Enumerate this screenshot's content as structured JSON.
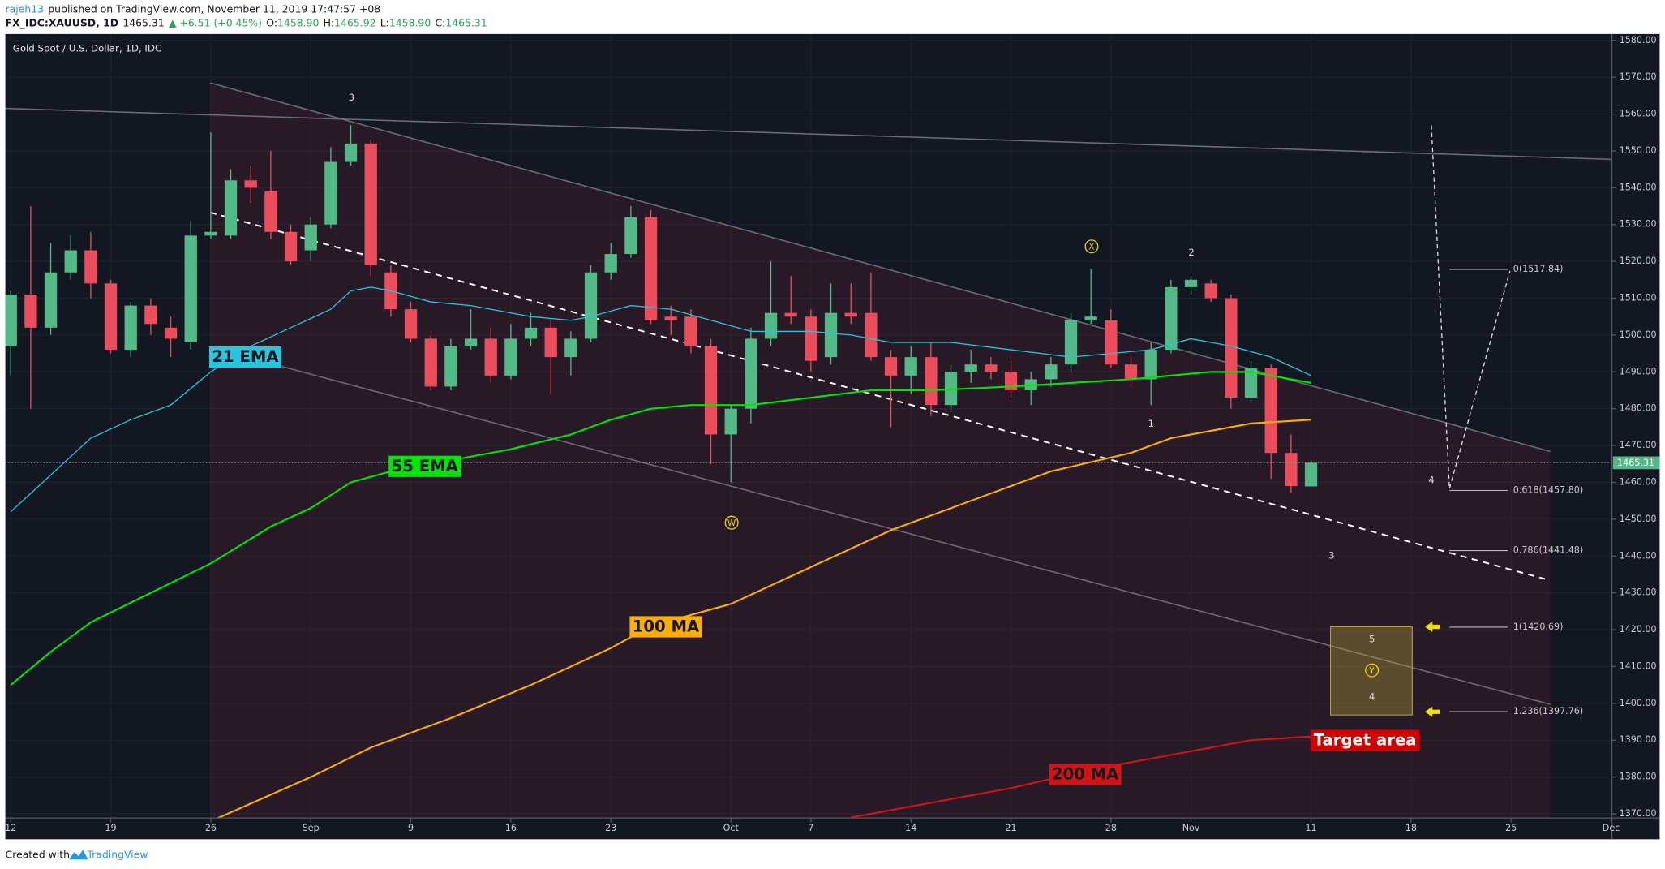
{
  "header": {
    "author": "rajeh13",
    "published": "published on TradingView.com, November 11, 2019 17:47:57 +08",
    "symbol": "FX_IDC:XAUUSD, 1D",
    "last": "1465.31",
    "change": "▲ +6.51 (+0.45%)",
    "ohlc": [
      {
        "key": "O:",
        "value": "1458.90"
      },
      {
        "key": "H:",
        "value": "1465.92"
      },
      {
        "key": "L:",
        "value": "1458.90"
      },
      {
        "key": "C:",
        "value": "1465.31"
      }
    ]
  },
  "footer": {
    "created": "Created with",
    "brand": "TradingView"
  },
  "chart_data": {
    "type": "candlestick",
    "title": "Gold Spot / U.S. Dollar, 1D, IDC",
    "up_color": "#53b987",
    "down_color": "#eb4d5c",
    "x": [
      0,
      1,
      2,
      3,
      4,
      5,
      6,
      7,
      8,
      9,
      10,
      11,
      12,
      13,
      14,
      15,
      16,
      17,
      18,
      19,
      20,
      21,
      22,
      23,
      24,
      25,
      26,
      27,
      28,
      29,
      30,
      31,
      32,
      33,
      34,
      35,
      36,
      37,
      38,
      39,
      40,
      41,
      42,
      43,
      44,
      45,
      46,
      47,
      48,
      49,
      50,
      51,
      52,
      53,
      54,
      55,
      56,
      57,
      58,
      59,
      60,
      61,
      62,
      63,
      64,
      65
    ],
    "open": [
      1497,
      1511,
      1502,
      1517,
      1523,
      1514,
      1496,
      1508,
      1502,
      1498,
      1527,
      1527,
      1542,
      1539,
      1528,
      1523,
      1530,
      1547,
      1552,
      1517,
      1507,
      1499,
      1486,
      1497,
      1499,
      1489,
      1499,
      1502,
      1494,
      1499,
      1517,
      1522,
      1532,
      1505,
      1505,
      1497,
      1473,
      1480,
      1499,
      1506,
      1505,
      1494,
      1506,
      1506,
      1494,
      1489,
      1494,
      1481,
      1490,
      1492,
      1490,
      1485,
      1488,
      1492,
      1504,
      1504,
      1492,
      1488,
      1496,
      1513,
      1514,
      1510,
      1483,
      1491,
      1468,
      1458.9
    ],
    "high": [
      1512,
      1535,
      1525,
      1527,
      1528,
      1515,
      1509,
      1510,
      1505,
      1531,
      1555,
      1545,
      1546,
      1550,
      1530,
      1532,
      1551,
      1557,
      1553,
      1519,
      1509,
      1500,
      1499,
      1507,
      1502,
      1503,
      1506,
      1504,
      1501,
      1519,
      1525,
      1535,
      1534,
      1508,
      1507,
      1499,
      1481,
      1502,
      1520,
      1516,
      1507,
      1514,
      1514,
      1517,
      1496,
      1497,
      1498,
      1492,
      1496,
      1494,
      1493,
      1490,
      1494,
      1506,
      1518,
      1507,
      1494,
      1498,
      1515,
      1516,
      1515,
      1511,
      1493,
      1492,
      1473,
      1465.92
    ],
    "low": [
      1489,
      1480,
      1500,
      1515,
      1510,
      1495,
      1494,
      1500,
      1494,
      1496,
      1526,
      1526,
      1536,
      1526,
      1519,
      1520,
      1529,
      1546,
      1516,
      1505,
      1498,
      1485,
      1485,
      1496,
      1487,
      1488,
      1497,
      1484,
      1489,
      1498,
      1515,
      1521,
      1503,
      1500,
      1495,
      1465,
      1460,
      1476,
      1497,
      1503,
      1490,
      1492,
      1503,
      1493,
      1475,
      1484,
      1478,
      1479,
      1487,
      1488,
      1483,
      1481,
      1486,
      1490,
      1503,
      1491,
      1486,
      1481,
      1495,
      1511,
      1509,
      1480,
      1482,
      1461,
      1457,
      1458.9
    ],
    "close": [
      1511,
      1502,
      1517,
      1523,
      1514,
      1496,
      1508,
      1503,
      1499,
      1527,
      1528,
      1542,
      1540,
      1528,
      1520,
      1530,
      1547,
      1552,
      1519,
      1507,
      1499,
      1486,
      1497,
      1499,
      1489,
      1499,
      1502,
      1494,
      1499,
      1517,
      1522,
      1532,
      1504,
      1504,
      1497,
      1473,
      1480,
      1499,
      1506,
      1505,
      1493,
      1506,
      1505,
      1494,
      1489,
      1494,
      1481,
      1490,
      1492,
      1490,
      1485,
      1488,
      1492,
      1504,
      1505,
      1492,
      1488,
      1496,
      1513,
      1515,
      1510,
      1483,
      1491,
      1468,
      1459,
      1465.31
    ],
    "series": [
      {
        "name": "21 EMA",
        "color": "#29c5dc",
        "x": [
          0,
          1,
          3,
          4,
          6,
          8,
          10,
          12,
          14,
          16,
          17,
          18,
          19,
          21,
          23,
          26,
          28,
          29,
          31,
          33,
          35,
          37,
          40,
          42,
          44,
          47,
          50,
          53,
          55,
          57,
          59,
          61,
          63,
          65
        ],
        "values": [
          1452,
          1457,
          1467,
          1472,
          1477,
          1481,
          1490,
          1497,
          1502,
          1507,
          1512,
          1513,
          1512,
          1509,
          1508,
          1505,
          1504,
          1505,
          1508,
          1507,
          1504,
          1501,
          1501,
          1500,
          1498,
          1498,
          1496,
          1494,
          1495,
          1496,
          1499,
          1497,
          1494,
          1489
        ]
      },
      {
        "name": "55 EMA",
        "color": "#00e600",
        "x": [
          0,
          2,
          4,
          7,
          10,
          13,
          15,
          17,
          19,
          22,
          25,
          28,
          30,
          32,
          34,
          37,
          40,
          43,
          46,
          50,
          53,
          56,
          58,
          60,
          62,
          65
        ],
        "values": [
          1405,
          1414,
          1422,
          1430,
          1438,
          1448,
          1453,
          1460,
          1463,
          1466,
          1469,
          1473,
          1477,
          1480,
          1481,
          1481,
          1483,
          1485,
          1485,
          1486,
          1487,
          1488,
          1489,
          1490,
          1490,
          1487
        ]
      },
      {
        "name": "100 MA",
        "color": "#ffae00",
        "x": [
          10,
          15,
          18,
          22,
          26,
          30,
          32,
          36,
          40,
          44,
          48,
          52,
          56,
          58,
          60,
          62,
          65
        ],
        "values": [
          1368,
          1380,
          1388,
          1396,
          1405,
          1415,
          1421,
          1427,
          1437,
          1447,
          1455,
          1463,
          1468,
          1472,
          1474,
          1476,
          1477
        ]
      },
      {
        "name": "200 MA",
        "color": "#d41414",
        "x": [
          42,
          46,
          50,
          54,
          58,
          62,
          65
        ],
        "values": [
          1369,
          1373,
          1377,
          1382,
          1386,
          1390,
          1391
        ]
      }
    ],
    "fib": [
      {
        "value": 1517.84,
        "label": "0(1517.84)"
      },
      {
        "value": 1457.8,
        "label": "0.618(1457.80)"
      },
      {
        "value": 1441.48,
        "label": "0.786(1441.48)"
      },
      {
        "value": 1420.69,
        "label": "1(1420.69)"
      },
      {
        "value": 1397.76,
        "label": "1.236(1397.76)"
      }
    ],
    "annotations": [
      "3",
      "X",
      "2",
      "1",
      "W",
      "4",
      "3",
      "5",
      "Y",
      "4",
      "Target area"
    ],
    "last_price": {
      "value": 1465.31,
      "label": "1465.31"
    },
    "xlim": [
      -0.27,
      80.04
    ],
    "xticks": [
      {
        "value": 0,
        "label": "12"
      },
      {
        "value": 5,
        "label": "19"
      },
      {
        "value": 10,
        "label": "26"
      },
      {
        "value": 15,
        "label": "Sep"
      },
      {
        "value": 20,
        "label": "9"
      },
      {
        "value": 25,
        "label": "16"
      },
      {
        "value": 30,
        "label": "23"
      },
      {
        "value": 36,
        "label": "Oct"
      },
      {
        "value": 40,
        "label": "7"
      },
      {
        "value": 45,
        "label": "14"
      },
      {
        "value": 50,
        "label": "21"
      },
      {
        "value": 55,
        "label": "28"
      },
      {
        "value": 59,
        "label": "Nov"
      },
      {
        "value": 65,
        "label": "11"
      },
      {
        "value": 70,
        "label": "18"
      },
      {
        "value": 75,
        "label": "25"
      },
      {
        "value": 80,
        "label": "Dec"
      }
    ],
    "ylim": [
      1368.87,
      1581.73
    ],
    "yticks": [
      {
        "value": 1370,
        "label": "1370.00"
      },
      {
        "value": 1380,
        "label": "1380.00"
      },
      {
        "value": 1390,
        "label": "1390.00"
      },
      {
        "value": 1400,
        "label": "1400.00"
      },
      {
        "value": 1410,
        "label": "1410.00"
      },
      {
        "value": 1420,
        "label": "1420.00"
      },
      {
        "value": 1430,
        "label": "1430.00"
      },
      {
        "value": 1440,
        "label": "1440.00"
      },
      {
        "value": 1450,
        "label": "1450.00"
      },
      {
        "value": 1460,
        "label": "1460.00"
      },
      {
        "value": 1470,
        "label": "1470.00"
      },
      {
        "value": 1480,
        "label": "1480.00"
      },
      {
        "value": 1490,
        "label": "1490.00"
      },
      {
        "value": 1500,
        "label": "1500.00"
      },
      {
        "value": 1510,
        "label": "1510.00"
      },
      {
        "value": 1520,
        "label": "1520.00"
      },
      {
        "value": 1530,
        "label": "1530.00"
      },
      {
        "value": 1540,
        "label": "1540.00"
      },
      {
        "value": 1550,
        "label": "1550.00"
      },
      {
        "value": 1560,
        "label": "1560.00"
      },
      {
        "value": 1570,
        "label": "1570.00"
      },
      {
        "value": 1580,
        "label": "1580.00"
      }
    ],
    "grid": true
  }
}
